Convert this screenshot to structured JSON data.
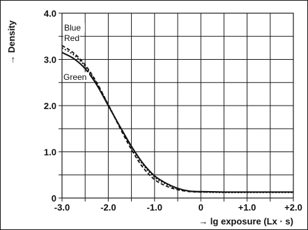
{
  "chart_data": {
    "type": "line",
    "title": "",
    "xlabel": "→ lg exposure (Lx · s)",
    "ylabel": "→ Density",
    "xlim": [
      -3.0,
      2.0
    ],
    "ylim": [
      0,
      4.0
    ],
    "x_ticks": [
      -3.0,
      -2.5,
      -2.0,
      -1.5,
      -1.0,
      -0.5,
      0,
      0.5,
      1.0,
      1.5,
      2.0
    ],
    "x_tick_labels": [
      "-3.0",
      "-2.0",
      "-1.0",
      "0",
      "+1.0",
      "+2.0"
    ],
    "y_ticks": [
      0,
      0.5,
      1.0,
      1.5,
      2.0,
      2.5,
      3.0,
      3.5,
      4.0
    ],
    "y_tick_labels": [
      "0",
      "1.0",
      "2.0",
      "3.0",
      "4.0"
    ],
    "grid": true,
    "series": [
      {
        "name": "Blue",
        "style": "dashed",
        "x": [
          -3.0,
          -2.75,
          -2.5,
          -2.25,
          -2.0,
          -1.75,
          -1.5,
          -1.25,
          -1.0,
          -0.75,
          -0.5,
          -0.25,
          0,
          0.5,
          1.0,
          1.5,
          2.0
        ],
        "y": [
          3.3,
          3.14,
          2.88,
          2.5,
          2.02,
          1.52,
          1.05,
          0.66,
          0.4,
          0.26,
          0.18,
          0.14,
          0.13,
          0.13,
          0.13,
          0.13,
          0.13
        ]
      },
      {
        "name": "Red",
        "style": "dotted",
        "x": [
          -3.0,
          -2.75,
          -2.5,
          -2.25,
          -2.0,
          -1.75,
          -1.5,
          -1.25,
          -1.0,
          -0.75,
          -0.5,
          -0.25,
          0,
          0.5,
          1.0,
          1.5,
          2.0
        ],
        "y": [
          3.25,
          3.1,
          2.85,
          2.48,
          2.02,
          1.55,
          1.1,
          0.72,
          0.45,
          0.3,
          0.2,
          0.15,
          0.13,
          0.12,
          0.12,
          0.12,
          0.12
        ]
      },
      {
        "name": "Green",
        "style": "solid",
        "x": [
          -3.0,
          -2.75,
          -2.5,
          -2.25,
          -2.0,
          -1.75,
          -1.5,
          -1.25,
          -1.0,
          -0.75,
          -0.5,
          -0.25,
          0,
          0.5,
          1.0,
          1.5,
          2.0
        ],
        "y": [
          3.15,
          3.02,
          2.8,
          2.45,
          2.0,
          1.55,
          1.12,
          0.75,
          0.48,
          0.32,
          0.21,
          0.15,
          0.14,
          0.13,
          0.13,
          0.13,
          0.13
        ]
      }
    ],
    "legend": "inline-left",
    "colors": {
      "line": "#111111",
      "grid": "#1a1a1a"
    }
  }
}
